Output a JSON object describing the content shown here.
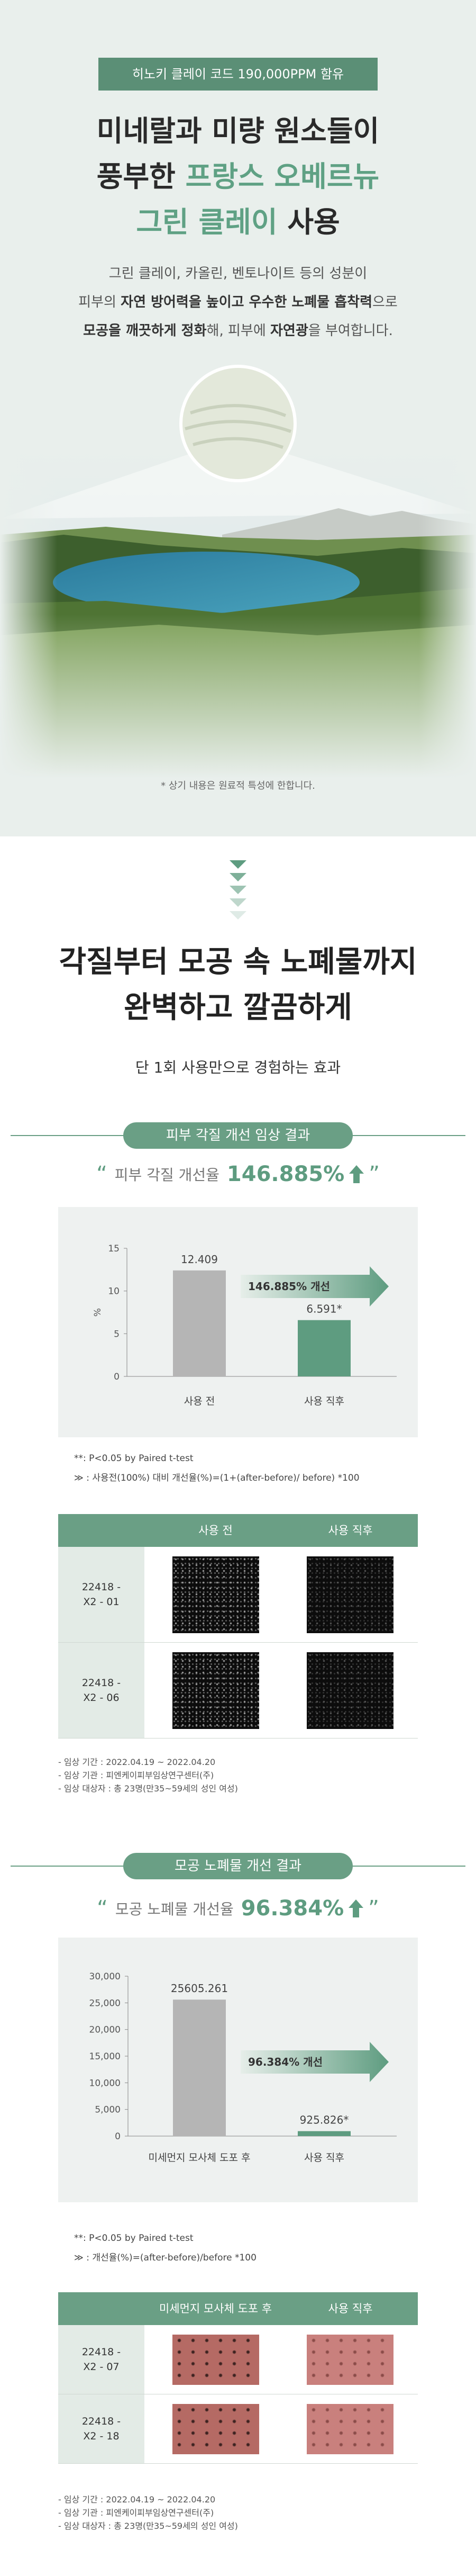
{
  "hero": {
    "badge": "히노키 클레이 코드 190,000PPM 함유",
    "title": [
      [
        {
          "text": "미네랄과 미량 원소들이"
        }
      ],
      [
        {
          "text": "풍부한 "
        },
        {
          "text": "프랑스 오베르뉴",
          "highlight": true
        }
      ],
      [
        {
          "text": "그린 클레이",
          "highlight": true
        },
        {
          "text": " 사용"
        }
      ]
    ],
    "body": [
      [
        {
          "text": "그린 클레이, 카올린, 벤토나이트 등의 성분이"
        }
      ],
      [
        {
          "text": "피부의 "
        },
        {
          "text": "자연 방어력을 높이고 우수한 노폐물 흡착력",
          "bold": true
        },
        {
          "text": "으로"
        }
      ],
      [
        {
          "text": "모공을 깨끗하게 정화",
          "bold": true
        },
        {
          "text": "해, 피부에 "
        },
        {
          "text": "자연광",
          "bold": true
        },
        {
          "text": "을 부여합니다."
        }
      ]
    ],
    "note": "* 상기 내용은 원료적 특성에 한합니다."
  },
  "effects": {
    "title": [
      "각질부터 모공 속 노폐물까지",
      "완벽하고 깔끔하게"
    ],
    "subtitle": "단 1회 사용만으로 경험하는 효과"
  },
  "results": [
    {
      "label": "피부 각질 개선 임상 결과",
      "quote_open": "“",
      "quote_text": "피부 각질 개선율",
      "quote_value": "146.885%",
      "quote_close": "”",
      "notes": [
        "**: P<0.05 by Paired t-test",
        "≫ : 사용전(100%) 대비 개선율(%)=(1+(after-before)/ before) *100"
      ],
      "table": {
        "header": [
          "사용 전",
          "사용 직후"
        ],
        "rows": [
          [
            "22418 -",
            "X2 - 01"
          ],
          [
            "22418 -",
            "X2 - 06"
          ]
        ]
      },
      "info": [
        "- 임상 기간 : 2022.04.19 ~ 2022.04.20",
        "- 임상 기관 : 피엔케이피부임상연구센터(주)",
        "- 임상 대상자 : 총 23명(만35~59세의 성인 여성)"
      ]
    },
    {
      "label": "모공 노폐물 개선 결과",
      "quote_open": "“",
      "quote_text": "모공 노폐물 개선율",
      "quote_value": "96.384%",
      "quote_close": "”",
      "notes": [
        "**: P<0.05 by Paired t-test",
        "≫ : 개선율(%)=(after-before)/before *100"
      ],
      "table": {
        "header": [
          "미세먼지 모사체 도포 후",
          "사용 직후"
        ],
        "rows": [
          [
            "22418 -",
            "X2 - 07"
          ],
          [
            "22418 -",
            "X2 - 18"
          ]
        ]
      },
      "info": [
        "- 임상 기간 : 2022.04.19 ~ 2022.04.20",
        "- 임상 기관 : 피엔케이피부임상연구센터(주)",
        "- 임상 대상자 : 총 23명(만35~59세의 성인 여성)"
      ]
    }
  ],
  "chart_data": [
    {
      "type": "bar",
      "categories": [
        "사용 전",
        "사용 직후"
      ],
      "values": [
        12.409,
        6.591
      ],
      "value_labels": [
        "12.409",
        "6.591*"
      ],
      "colors": [
        "#b5b5b5",
        "#5e9c80"
      ],
      "ylabel": "%",
      "ylim": [
        0,
        15
      ],
      "yticks": [
        0,
        5,
        10,
        15
      ],
      "annotation": "146.885% 개선"
    },
    {
      "type": "bar",
      "categories": [
        "미세먼지 모사체 도포 후",
        "사용 직후"
      ],
      "values": [
        25605.261,
        925.826
      ],
      "value_labels": [
        "25605.261",
        "925.826*"
      ],
      "colors": [
        "#b5b5b5",
        "#5e9c80"
      ],
      "ylim": [
        0,
        30000
      ],
      "yticks": [
        0,
        {
          "value": 5000,
          "label": "5,000"
        },
        {
          "value": 10000,
          "label": "10,000"
        },
        {
          "value": 15000,
          "label": "15,000"
        },
        {
          "value": 20000,
          "label": "20,000"
        },
        {
          "value": 25000,
          "label": "25,000"
        },
        {
          "value": 30000,
          "label": "30,000"
        }
      ],
      "annotation": "96.384% 개선"
    }
  ]
}
